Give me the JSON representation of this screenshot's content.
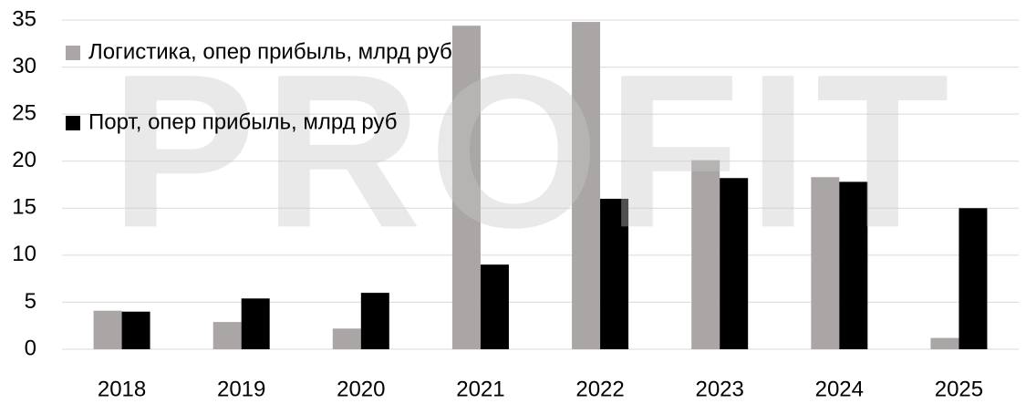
{
  "chart_data": {
    "type": "bar",
    "watermark": "PROFIT",
    "categories": [
      "2018",
      "2019",
      "2020",
      "2021",
      "2022",
      "2023",
      "2024",
      "2025"
    ],
    "series": [
      {
        "name": "Логистика, опер прибыль, млрд руб",
        "color": "#aaa6a5",
        "values": [
          4.1,
          2.9,
          2.2,
          34.4,
          34.8,
          20.1,
          18.3,
          1.2
        ]
      },
      {
        "name": "Порт, опер прибыль, млрд руб",
        "color": "#000000",
        "values": [
          4.0,
          5.4,
          6.0,
          9.0,
          16.0,
          18.2,
          17.8,
          15.0
        ]
      }
    ],
    "ylim": [
      0,
      35
    ],
    "yticks": [
      0,
      5,
      10,
      15,
      20,
      25,
      30,
      35
    ],
    "grid": true,
    "legend": "top-left"
  }
}
